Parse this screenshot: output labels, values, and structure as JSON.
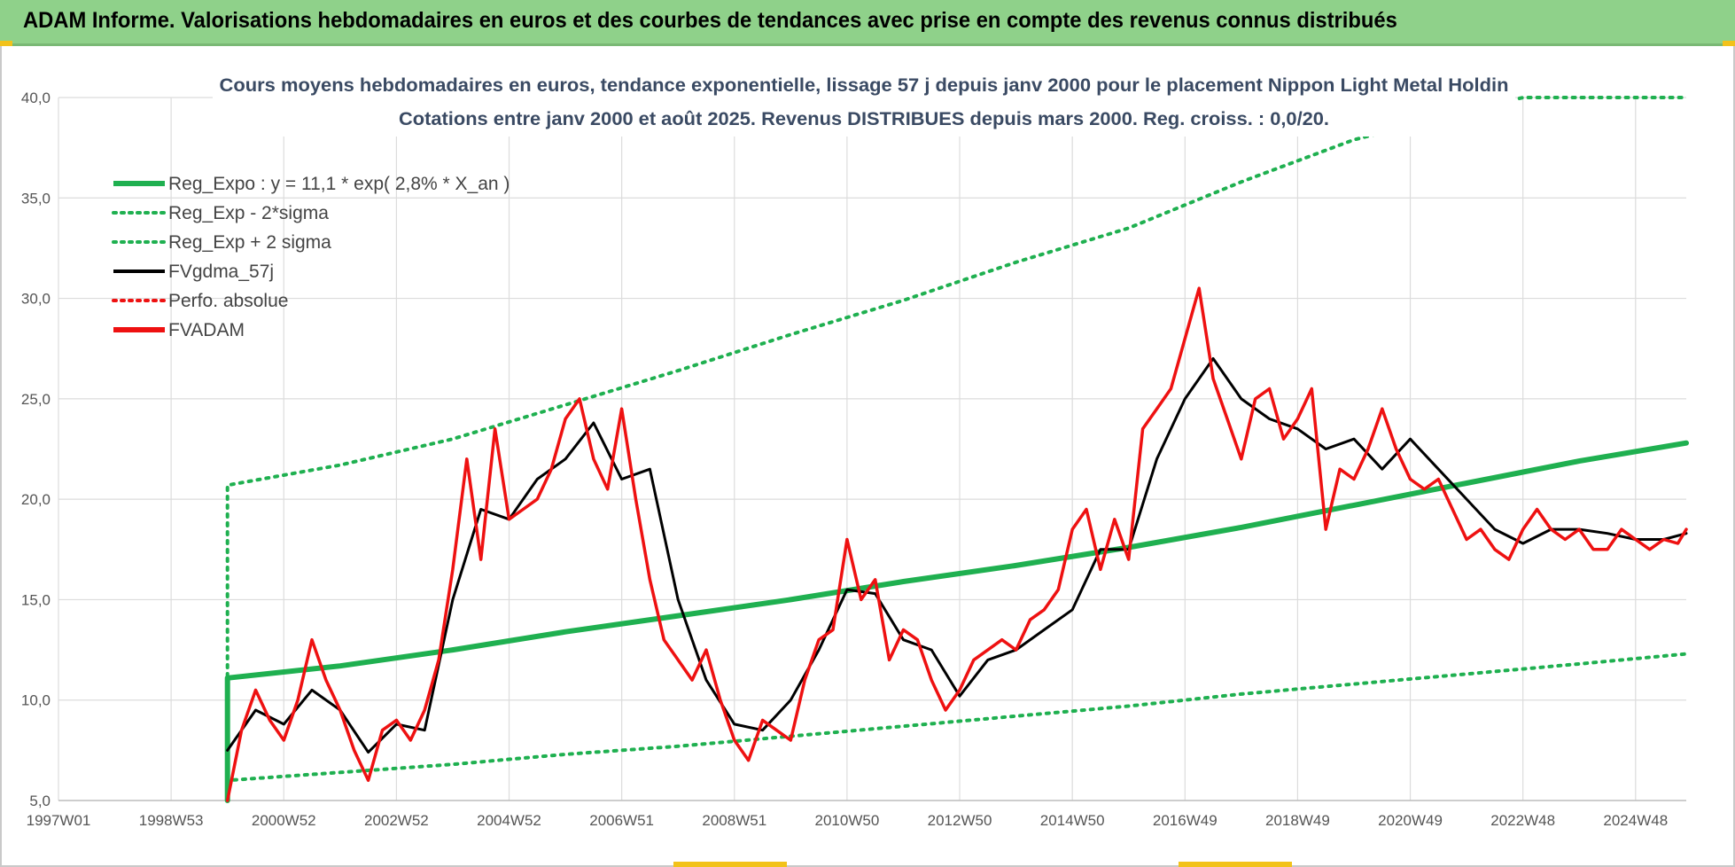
{
  "banner": {
    "title": "ADAM Informe. Valorisations hebdomadaires en euros et des courbes de tendances avec prise en compte des revenus connus distribués"
  },
  "colors": {
    "banner": "#8fd18a",
    "reg_green": "#1fb050",
    "dotted_green": "#1fb050",
    "gdma": "#000000",
    "fvadam": "#ee1111",
    "perfo": "#ee1111",
    "grid": "#dcdcdc"
  },
  "chart_data": {
    "type": "line",
    "title": "Cours moyens hebdomadaires en euros, tendance exponentielle, lissage 57 j depuis janv 2000 pour le placement Nippon Light Metal Holdin",
    "subtitle": "Cotations entre janv 2000 et août 2025. Revenus DISTRIBUES depuis mars 2000. Reg. croiss. : 0,0/20.",
    "xlabel": "",
    "ylabel": "",
    "ylim": [
      5,
      40
    ],
    "xlim": [
      1997.0,
      2025.9
    ],
    "yticks": [
      "5,0",
      "10,0",
      "15,0",
      "20,0",
      "25,0",
      "30,0",
      "35,0",
      "40,0"
    ],
    "xticks": [
      "1997W01",
      "1998W53",
      "2000W52",
      "2002W52",
      "2004W52",
      "2006W51",
      "2008W51",
      "2010W50",
      "2012W50",
      "2014W50",
      "2016W49",
      "2018W49",
      "2020W49",
      "2022W48",
      "2024W48"
    ],
    "grid": true,
    "legend_position": "top-left",
    "legend": [
      {
        "label": "Reg_Expo : y = 11,1 * exp( 2,8% *  X_an )",
        "style": "solid-thick",
        "color": "#1fb050"
      },
      {
        "label": "Reg_Exp - 2*sigma",
        "style": "dotted",
        "color": "#1fb050"
      },
      {
        "label": "Reg_Exp + 2 sigma",
        "style": "dotted",
        "color": "#1fb050"
      },
      {
        "label": "FVgdma_57j",
        "style": "solid",
        "color": "#000000"
      },
      {
        "label": "Perfo. absolue",
        "style": "dotted",
        "color": "#ee1111"
      },
      {
        "label": "FVADAM",
        "style": "solid-thick",
        "color": "#ee1111"
      }
    ],
    "series": [
      {
        "name": "Reg_Expo : y = 11,1 * exp( 2,8% *  X_an )",
        "x": [
          2000.0,
          2002.0,
          2004.0,
          2006.0,
          2008.0,
          2010.0,
          2012.0,
          2014.0,
          2016.0,
          2018.0,
          2020.0,
          2022.0,
          2024.0,
          2025.9
        ],
        "values": [
          11.1,
          11.7,
          12.5,
          13.4,
          14.2,
          15.0,
          15.9,
          16.7,
          17.6,
          18.6,
          19.7,
          20.8,
          21.9,
          22.8
        ]
      },
      {
        "name": "Reg_Exp - 2*sigma",
        "x": [
          2000.0,
          2002.0,
          2004.0,
          2006.0,
          2008.0,
          2010.0,
          2012.0,
          2014.0,
          2016.0,
          2018.0,
          2020.0,
          2022.0,
          2024.0,
          2025.9
        ],
        "values": [
          6.0,
          6.4,
          6.8,
          7.3,
          7.7,
          8.2,
          8.7,
          9.2,
          9.7,
          10.3,
          10.8,
          11.3,
          11.8,
          12.3
        ]
      },
      {
        "name": "Reg_Exp + 2 sigma",
        "x": [
          2000.0,
          2002.0,
          2004.0,
          2006.0,
          2008.0,
          2010.0,
          2012.0,
          2014.0,
          2016.0,
          2018.0,
          2020.0,
          2022.0,
          2023.0,
          2025.9
        ],
        "values": [
          20.7,
          21.7,
          23.0,
          24.7,
          26.4,
          28.2,
          29.9,
          31.8,
          33.5,
          35.8,
          37.9,
          39.3,
          40.0,
          40.0
        ]
      },
      {
        "name": "FVgdma_57j",
        "x": [
          2000.0,
          2000.5,
          2001.0,
          2001.5,
          2002.0,
          2002.5,
          2003.0,
          2003.5,
          2004.0,
          2004.5,
          2005.0,
          2005.5,
          2006.0,
          2006.5,
          2007.0,
          2007.5,
          2008.0,
          2008.5,
          2009.0,
          2009.5,
          2010.0,
          2010.5,
          2011.0,
          2011.5,
          2012.0,
          2012.5,
          2013.0,
          2013.5,
          2014.0,
          2014.5,
          2015.0,
          2015.5,
          2016.0,
          2016.5,
          2017.0,
          2017.5,
          2018.0,
          2018.5,
          2019.0,
          2019.5,
          2020.0,
          2020.5,
          2021.0,
          2021.5,
          2022.0,
          2022.5,
          2023.0,
          2023.5,
          2024.0,
          2024.5,
          2025.0,
          2025.5,
          2025.9
        ],
        "values": [
          7.5,
          9.5,
          8.8,
          10.5,
          9.5,
          7.4,
          8.8,
          8.5,
          15.0,
          19.5,
          19.0,
          21.0,
          22.0,
          23.8,
          21.0,
          21.5,
          15.0,
          11.0,
          8.8,
          8.5,
          10.0,
          12.5,
          15.5,
          15.3,
          13.0,
          12.5,
          10.2,
          12.0,
          12.5,
          13.5,
          14.5,
          17.5,
          17.5,
          22.0,
          25.0,
          27.0,
          25.0,
          24.0,
          23.5,
          22.5,
          23.0,
          21.5,
          23.0,
          21.5,
          20.0,
          18.5,
          17.8,
          18.5,
          18.5,
          18.3,
          18.0,
          18.0,
          18.3
        ]
      },
      {
        "name": "FVADAM",
        "x": [
          2000.0,
          2000.25,
          2000.5,
          2000.75,
          2001.0,
          2001.25,
          2001.5,
          2001.75,
          2002.0,
          2002.25,
          2002.5,
          2002.75,
          2003.0,
          2003.25,
          2003.5,
          2003.75,
          2004.0,
          2004.25,
          2004.5,
          2004.75,
          2005.0,
          2005.25,
          2005.5,
          2005.75,
          2006.0,
          2006.25,
          2006.5,
          2006.75,
          2007.0,
          2007.25,
          2007.5,
          2007.75,
          2008.0,
          2008.25,
          2008.5,
          2008.75,
          2009.0,
          2009.25,
          2009.5,
          2009.75,
          2010.0,
          2010.25,
          2010.5,
          2010.75,
          2011.0,
          2011.25,
          2011.5,
          2011.75,
          2012.0,
          2012.25,
          2012.5,
          2012.75,
          2013.0,
          2013.25,
          2013.5,
          2013.75,
          2014.0,
          2014.25,
          2014.5,
          2014.75,
          2015.0,
          2015.25,
          2015.5,
          2015.75,
          2016.0,
          2016.25,
          2016.5,
          2016.75,
          2017.0,
          2017.25,
          2017.5,
          2017.75,
          2018.0,
          2018.25,
          2018.5,
          2018.75,
          2019.0,
          2019.25,
          2019.5,
          2019.75,
          2020.0,
          2020.25,
          2020.5,
          2020.75,
          2021.0,
          2021.25,
          2021.5,
          2021.75,
          2022.0,
          2022.25,
          2022.5,
          2022.75,
          2023.0,
          2023.25,
          2023.5,
          2023.75,
          2024.0,
          2024.25,
          2024.5,
          2024.75,
          2025.0,
          2025.25,
          2025.5,
          2025.75,
          2025.9
        ],
        "values": [
          5.0,
          8.5,
          10.5,
          9.0,
          8.0,
          10.0,
          13.0,
          11.0,
          9.5,
          7.5,
          6.0,
          8.5,
          9.0,
          8.0,
          9.5,
          12.0,
          16.5,
          22.0,
          17.0,
          23.5,
          19.0,
          19.5,
          20.0,
          21.5,
          24.0,
          25.0,
          22.0,
          20.5,
          24.5,
          20.0,
          16.0,
          13.0,
          12.0,
          11.0,
          12.5,
          10.0,
          8.0,
          7.0,
          9.0,
          8.5,
          8.0,
          11.0,
          13.0,
          13.5,
          18.0,
          15.0,
          16.0,
          12.0,
          13.5,
          13.0,
          11.0,
          9.5,
          10.5,
          12.0,
          12.5,
          13.0,
          12.5,
          14.0,
          14.5,
          15.5,
          18.5,
          19.5,
          16.5,
          19.0,
          17.0,
          23.5,
          24.5,
          25.5,
          28.0,
          30.5,
          26.0,
          24.0,
          22.0,
          25.0,
          25.5,
          23.0,
          24.0,
          25.5,
          18.5,
          21.5,
          21.0,
          22.5,
          24.5,
          22.5,
          21.0,
          20.5,
          21.0,
          19.5,
          18.0,
          18.5,
          17.5,
          17.0,
          18.5,
          19.5,
          18.5,
          18.0,
          18.5,
          17.5,
          17.5,
          18.5,
          18.0,
          17.5,
          18.0,
          17.8,
          18.5
        ]
      }
    ]
  }
}
